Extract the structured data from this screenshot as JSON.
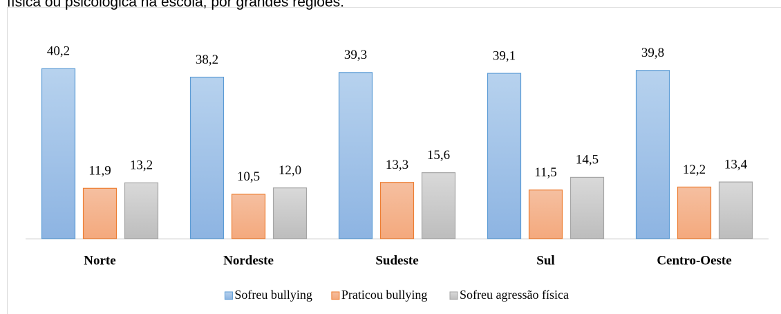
{
  "chart_data": {
    "type": "bar",
    "title": "física ou psicológica na escola, por grandes regiões.",
    "categories": [
      "Norte",
      "Nordeste",
      "Sudeste",
      "Sul",
      "Centro-Oeste"
    ],
    "series": [
      {
        "name": "Sofreu bullying",
        "color": "#9dc3e6",
        "values": [
          40.2,
          38.2,
          39.3,
          39.1,
          39.8
        ],
        "value_labels": [
          "40,2",
          "38,2",
          "39,3",
          "39,1",
          "39,8"
        ]
      },
      {
        "name": "Praticou bullying",
        "color": "#f4b183",
        "values": [
          11.9,
          10.5,
          13.3,
          11.5,
          12.2
        ],
        "value_labels": [
          "11,9",
          "10,5",
          "13,3",
          "11,5",
          "12,2"
        ]
      },
      {
        "name": "Sofreu agressão física",
        "color": "#c9c9c9",
        "values": [
          13.2,
          12.0,
          15.6,
          14.5,
          13.4
        ],
        "value_labels": [
          "13,2",
          "12,0",
          "15,6",
          "14,5",
          "13,4"
        ]
      }
    ],
    "ylim": [
      0,
      45
    ],
    "legend": "bottom"
  }
}
